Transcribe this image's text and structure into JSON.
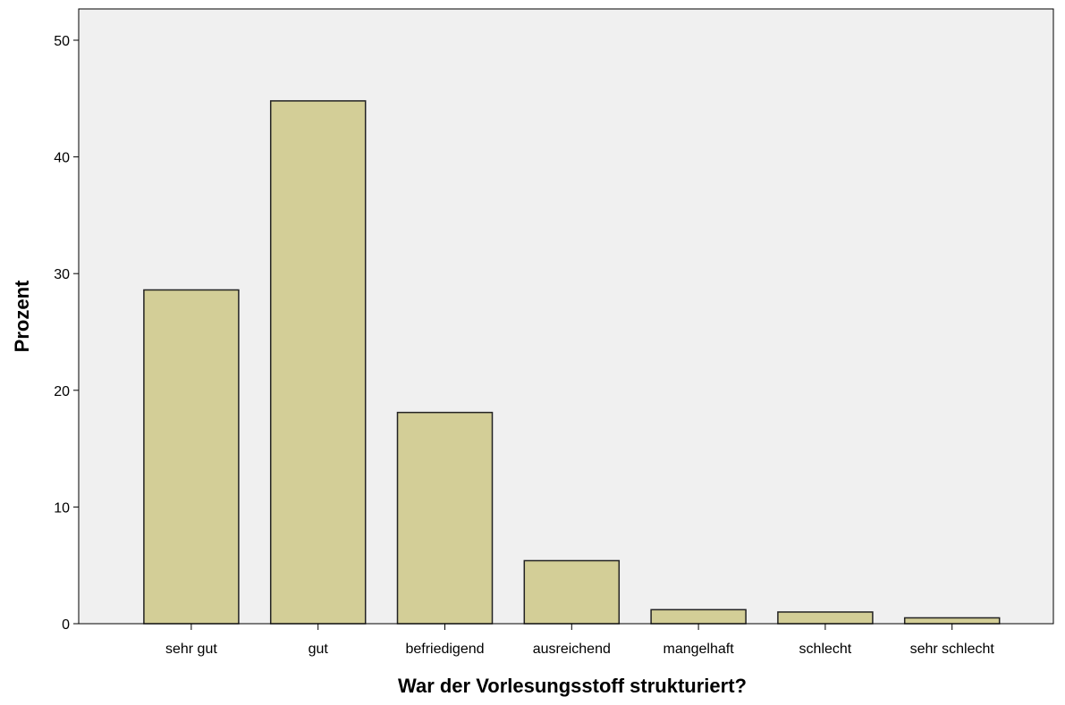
{
  "chart_data": {
    "type": "bar",
    "categories": [
      "sehr gut",
      "gut",
      "befriedigend",
      "ausreichend",
      "mangelhaft",
      "schlecht",
      "sehr schlecht"
    ],
    "values": [
      28.6,
      44.8,
      18.1,
      5.4,
      1.2,
      1.0,
      0.5
    ],
    "color": "#d3ce97",
    "ylim": [
      0,
      50
    ],
    "yticks": [
      0,
      10,
      20,
      30,
      40,
      50
    ],
    "x_label": "War der Vorlesungsstoff strukturiert?",
    "y_label": "Prozent",
    "grid": false
  }
}
